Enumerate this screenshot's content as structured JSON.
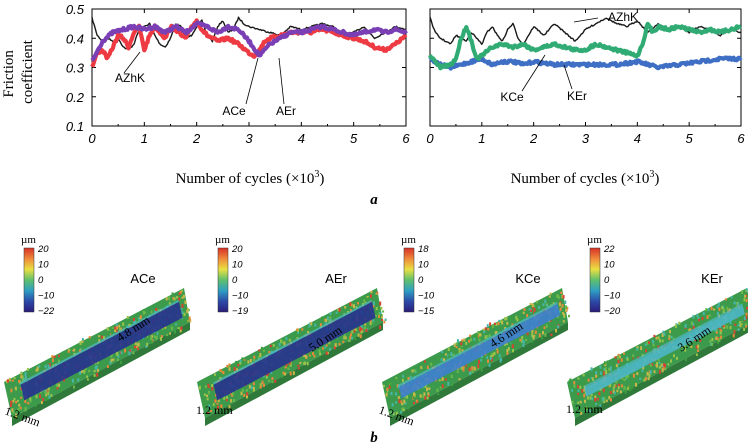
{
  "chart_data": [
    {
      "type": "line",
      "ylabel_line1": "Friction",
      "ylabel_line2": "coefficient",
      "xlabel": "Number of cycles (×10",
      "xlabel_exp": "3",
      "xlabel_close": ")",
      "xlim": [
        0,
        6
      ],
      "ylim": [
        0.1,
        0.5
      ],
      "xticks": [
        "0",
        "1",
        "2",
        "3",
        "4",
        "5",
        "6"
      ],
      "yticks": [
        "0.1",
        "0.2",
        "0.3",
        "0.4",
        "0.5"
      ],
      "grid": false,
      "series": [
        {
          "name": "AZhK",
          "color": "#1a1a1a",
          "x": [
            0,
            0.1,
            0.2,
            0.3,
            0.4,
            0.5,
            0.6,
            0.7,
            0.8,
            0.9,
            1.0,
            1.1,
            1.2,
            1.3,
            1.4,
            1.5,
            1.6,
            1.7,
            1.8,
            1.9,
            2.0,
            2.1,
            2.2,
            2.3,
            2.4,
            2.5,
            2.6,
            2.7,
            2.8,
            2.9,
            3.0,
            3.2,
            3.4,
            3.6,
            3.8,
            4.0,
            4.2,
            4.4,
            4.6,
            4.8,
            5.0,
            5.2,
            5.4,
            5.6,
            5.8,
            6.0
          ],
          "y": [
            0.47,
            0.41,
            0.39,
            0.4,
            0.39,
            0.4,
            0.37,
            0.36,
            0.38,
            0.43,
            0.44,
            0.45,
            0.41,
            0.38,
            0.37,
            0.4,
            0.45,
            0.44,
            0.4,
            0.41,
            0.44,
            0.46,
            0.41,
            0.39,
            0.44,
            0.46,
            0.42,
            0.43,
            0.47,
            0.45,
            0.44,
            0.43,
            0.42,
            0.41,
            0.44,
            0.43,
            0.44,
            0.45,
            0.44,
            0.41,
            0.42,
            0.44,
            0.4,
            0.42,
            0.44,
            0.43
          ]
        },
        {
          "name": "ACe",
          "color": "#7a3fb5",
          "x": [
            0,
            0.2,
            0.4,
            0.6,
            0.8,
            1.0,
            1.2,
            1.4,
            1.6,
            1.8,
            2.0,
            2.2,
            2.4,
            2.6,
            2.8,
            3.0,
            3.2,
            3.4,
            3.6,
            3.8,
            4.0,
            4.2,
            4.4,
            4.6,
            4.8,
            5.0,
            5.2,
            5.4,
            5.6,
            5.8,
            6.0
          ],
          "y": [
            0.32,
            0.39,
            0.42,
            0.43,
            0.44,
            0.43,
            0.44,
            0.42,
            0.44,
            0.42,
            0.45,
            0.44,
            0.42,
            0.44,
            0.43,
            0.39,
            0.34,
            0.38,
            0.4,
            0.42,
            0.42,
            0.43,
            0.44,
            0.43,
            0.42,
            0.41,
            0.42,
            0.43,
            0.42,
            0.43,
            0.42
          ]
        },
        {
          "name": "AEr",
          "color": "#ee3a43",
          "x": [
            0,
            0.1,
            0.2,
            0.3,
            0.4,
            0.5,
            0.6,
            0.7,
            0.8,
            0.9,
            1.0,
            1.1,
            1.2,
            1.3,
            1.4,
            1.5,
            1.6,
            1.7,
            1.8,
            1.9,
            2.0,
            2.1,
            2.2,
            2.4,
            2.6,
            2.8,
            3.0,
            3.1,
            3.2,
            3.3,
            3.4,
            3.6,
            3.8,
            4.0,
            4.2,
            4.4,
            4.6,
            4.8,
            5.0,
            5.2,
            5.4,
            5.6,
            5.8,
            6.0
          ],
          "y": [
            0.3,
            0.35,
            0.36,
            0.33,
            0.37,
            0.41,
            0.4,
            0.37,
            0.42,
            0.44,
            0.36,
            0.41,
            0.44,
            0.42,
            0.4,
            0.44,
            0.43,
            0.41,
            0.4,
            0.44,
            0.46,
            0.43,
            0.41,
            0.39,
            0.4,
            0.38,
            0.35,
            0.34,
            0.36,
            0.39,
            0.4,
            0.41,
            0.42,
            0.42,
            0.42,
            0.43,
            0.42,
            0.41,
            0.4,
            0.39,
            0.37,
            0.36,
            0.38,
            0.41
          ]
        }
      ]
    },
    {
      "type": "line",
      "xlabel": "Number of cycles (×10",
      "xlabel_exp": "3",
      "xlabel_close": ")",
      "xlim": [
        0,
        6
      ],
      "ylim": [
        0.1,
        0.5
      ],
      "xticks": [
        "0",
        "1",
        "2",
        "3",
        "4",
        "5",
        "6"
      ],
      "grid": false,
      "series": [
        {
          "name": "AZhK",
          "color": "#1a1a1a",
          "x": [
            0,
            0.1,
            0.2,
            0.3,
            0.4,
            0.5,
            0.6,
            0.7,
            0.8,
            0.9,
            1.0,
            1.1,
            1.2,
            1.3,
            1.4,
            1.5,
            1.6,
            1.7,
            1.8,
            1.9,
            2.0,
            2.2,
            2.4,
            2.6,
            2.8,
            3.0,
            3.2,
            3.4,
            3.6,
            3.8,
            4.0,
            4.2,
            4.4,
            4.6,
            4.8,
            5.0,
            5.2,
            5.4,
            5.6,
            5.8,
            6.0
          ],
          "y": [
            0.47,
            0.42,
            0.4,
            0.39,
            0.38,
            0.41,
            0.4,
            0.39,
            0.42,
            0.4,
            0.38,
            0.42,
            0.44,
            0.41,
            0.39,
            0.43,
            0.45,
            0.4,
            0.38,
            0.41,
            0.44,
            0.41,
            0.45,
            0.42,
            0.39,
            0.43,
            0.45,
            0.47,
            0.45,
            0.44,
            0.46,
            0.42,
            0.45,
            0.43,
            0.44,
            0.42,
            0.44,
            0.43,
            0.41,
            0.43,
            0.42
          ]
        },
        {
          "name": "KCe",
          "color": "#2fab73",
          "x": [
            0,
            0.2,
            0.4,
            0.5,
            0.6,
            0.7,
            0.8,
            0.9,
            1.0,
            1.2,
            1.4,
            1.6,
            1.8,
            2.0,
            2.2,
            2.4,
            2.6,
            2.8,
            3.0,
            3.2,
            3.4,
            3.6,
            3.8,
            4.0,
            4.1,
            4.2,
            4.3,
            4.4,
            4.6,
            4.8,
            5.0,
            5.2,
            5.4,
            5.6,
            5.8,
            6.0
          ],
          "y": [
            0.34,
            0.3,
            0.31,
            0.33,
            0.4,
            0.44,
            0.39,
            0.33,
            0.34,
            0.37,
            0.38,
            0.37,
            0.38,
            0.36,
            0.37,
            0.38,
            0.37,
            0.36,
            0.36,
            0.38,
            0.37,
            0.36,
            0.35,
            0.34,
            0.38,
            0.45,
            0.42,
            0.44,
            0.43,
            0.44,
            0.43,
            0.42,
            0.43,
            0.42,
            0.43,
            0.44
          ]
        },
        {
          "name": "KEr",
          "color": "#3f6fc4",
          "x": [
            0,
            0.2,
            0.4,
            0.6,
            0.8,
            1.0,
            1.2,
            1.4,
            1.6,
            1.8,
            2.0,
            2.4,
            2.8,
            3.2,
            3.6,
            4.0,
            4.4,
            4.8,
            5.2,
            5.6,
            6.0
          ],
          "y": [
            0.33,
            0.31,
            0.3,
            0.31,
            0.32,
            0.33,
            0.31,
            0.32,
            0.32,
            0.31,
            0.32,
            0.31,
            0.31,
            0.31,
            0.31,
            0.32,
            0.3,
            0.31,
            0.32,
            0.33,
            0.33
          ]
        }
      ]
    }
  ],
  "panel_a_label": "a",
  "panel_b_label": "b",
  "surfaces": [
    {
      "sample": "ACe",
      "unit": "µm",
      "scale": [
        "20",
        "10",
        "0",
        "−10",
        "−22"
      ],
      "length": "4.8 mm",
      "width": "1.2 mm"
    },
    {
      "sample": "AEr",
      "unit": "µm",
      "scale": [
        "20",
        "10",
        "0",
        "−10",
        "−19"
      ],
      "length": "5.0 mm",
      "width": "1.2 mm"
    },
    {
      "sample": "KCe",
      "unit": "µm",
      "scale": [
        "18",
        "10",
        "0",
        "−10",
        "−15"
      ],
      "length": "4.6 mm",
      "width": "1.2 mm"
    },
    {
      "sample": "KEr",
      "unit": "µm",
      "scale": [
        "22",
        "10",
        "0",
        "−10",
        "−20"
      ],
      "length": "3.6 mm",
      "width": "1.2 mm"
    }
  ],
  "colormap": [
    "#d73027",
    "#f08a3a",
    "#e9e043",
    "#5fbf6c",
    "#2f9fc3",
    "#2c4aa8",
    "#2a1c7a"
  ]
}
